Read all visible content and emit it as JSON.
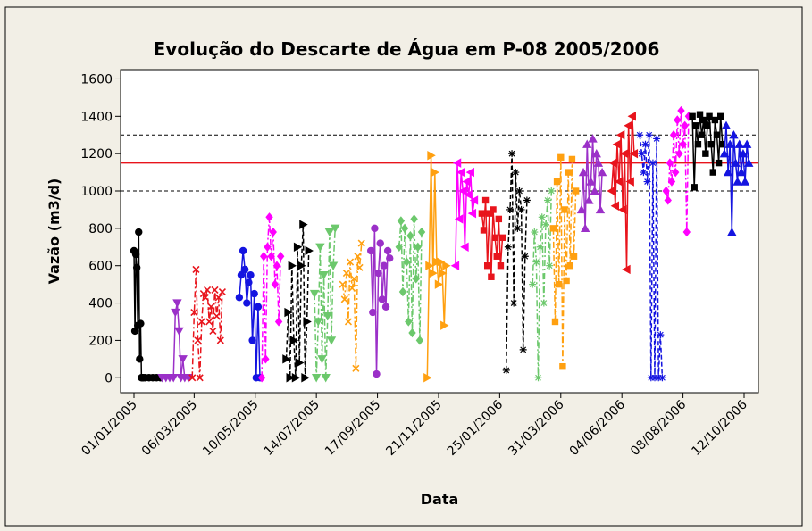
{
  "chart_data": {
    "type": "scatter",
    "title": "Evolução do Descarte de Água em P-08 2005/2006",
    "xlabel": "Data",
    "ylabel": "Vazão (m3/d)",
    "ylim": [
      -80,
      1650
    ],
    "yticks": [
      0,
      200,
      400,
      600,
      800,
      1000,
      1200,
      1400,
      1600
    ],
    "xlim": [
      0,
      685
    ],
    "xticks": [
      {
        "label": "01/01/2005",
        "day": 0
      },
      {
        "label": "06/03/2005",
        "day": 64
      },
      {
        "label": "10/05/2005",
        "day": 129
      },
      {
        "label": "14/07/2005",
        "day": 194
      },
      {
        "label": "17/09/2005",
        "day": 259
      },
      {
        "label": "21/11/2005",
        "day": 324
      },
      {
        "label": "25/01/2006",
        "day": 389
      },
      {
        "label": "31/03/2006",
        "day": 454
      },
      {
        "label": "04/06/2006",
        "day": 519
      },
      {
        "label": "08/08/2006",
        "day": 584
      },
      {
        "label": "12/10/2006",
        "day": 649
      }
    ],
    "reference_lines": [
      {
        "value": 1150,
        "color": "#e8141c",
        "style": "solid"
      },
      {
        "value": 1300,
        "color": "#000000",
        "style": "dashed"
      },
      {
        "value": 1000,
        "color": "#000000",
        "style": "dashed"
      }
    ],
    "grid": false,
    "legend": "none",
    "series": [
      {
        "color": "#000000",
        "marker": "circle",
        "line": "solid",
        "x": [
          0,
          1,
          2,
          3,
          4,
          5,
          6,
          7,
          8,
          9,
          10,
          12,
          16,
          20,
          24,
          28
        ],
        "values": [
          680,
          250,
          660,
          590,
          280,
          780,
          100,
          290,
          0,
          0,
          0,
          0,
          0,
          0,
          0,
          0
        ]
      },
      {
        "color": "#9b30c8",
        "marker": "tri-down",
        "line": "solid",
        "x": [
          30,
          34,
          38,
          42,
          44,
          46,
          48,
          50,
          52,
          54,
          58
        ],
        "values": [
          0,
          0,
          0,
          0,
          350,
          400,
          250,
          0,
          100,
          0,
          0
        ]
      },
      {
        "color": "#e8141c",
        "marker": "x",
        "line": "dashdot",
        "x": [
          62,
          64,
          66,
          68,
          70,
          72,
          74,
          76,
          78,
          80,
          82,
          84,
          86,
          88,
          90,
          92,
          94
        ],
        "values": [
          0,
          350,
          580,
          200,
          0,
          300,
          450,
          430,
          470,
          300,
          380,
          250,
          470,
          330,
          430,
          200,
          460
        ]
      },
      {
        "color": "#1414e0",
        "marker": "circle",
        "line": "solid",
        "x": [
          112,
          114,
          116,
          118,
          120,
          122,
          124,
          126,
          128,
          130,
          132,
          134
        ],
        "values": [
          430,
          550,
          680,
          580,
          400,
          510,
          550,
          200,
          450,
          0,
          380,
          0
        ]
      },
      {
        "color": "#ff00ff",
        "marker": "diamond",
        "line": "dashdot",
        "x": [
          136,
          138,
          140,
          142,
          144,
          146,
          148,
          150,
          152,
          154,
          156
        ],
        "values": [
          0,
          650,
          100,
          700,
          860,
          650,
          780,
          500,
          600,
          300,
          650
        ]
      },
      {
        "color": "#000000",
        "marker": "tri-right",
        "line": "dashed",
        "x": [
          162,
          164,
          166,
          168,
          170,
          172,
          174,
          176,
          178,
          180,
          182,
          184,
          186
        ],
        "values": [
          100,
          350,
          0,
          600,
          200,
          0,
          700,
          80,
          600,
          820,
          0,
          300,
          680
        ]
      },
      {
        "color": "#6cc86c",
        "marker": "tri-down",
        "line": "dashdot",
        "x": [
          192,
          194,
          196,
          198,
          200,
          202,
          204,
          206,
          208,
          210,
          212,
          214
        ],
        "values": [
          450,
          0,
          300,
          700,
          100,
          550,
          0,
          330,
          780,
          200,
          600,
          800
        ]
      },
      {
        "color": "#ffa010",
        "marker": "x",
        "line": "dashdot",
        "x": [
          222,
          224,
          226,
          228,
          230,
          232,
          234,
          236,
          238,
          240,
          242
        ],
        "values": [
          500,
          420,
          560,
          300,
          620,
          480,
          530,
          50,
          650,
          590,
          720
        ]
      },
      {
        "color": "#9b30c8",
        "marker": "circle",
        "line": "solid",
        "x": [
          252,
          254,
          256,
          258,
          260,
          262,
          264,
          266,
          268,
          270,
          272
        ],
        "values": [
          680,
          350,
          800,
          20,
          560,
          720,
          420,
          600,
          380,
          680,
          640
        ]
      },
      {
        "color": "#6cc86c",
        "marker": "diamond",
        "line": "dashdot",
        "x": [
          282,
          284,
          286,
          288,
          290,
          292,
          294,
          296,
          298,
          300,
          302,
          304,
          306
        ],
        "values": [
          700,
          840,
          460,
          800,
          620,
          300,
          760,
          240,
          850,
          530,
          700,
          200,
          780
        ]
      },
      {
        "color": "#ffa010",
        "marker": "tri-right",
        "line": "solid",
        "x": [
          312,
          314,
          316,
          318,
          320,
          322,
          324,
          326,
          328,
          330,
          332
        ],
        "values": [
          0,
          600,
          1190,
          560,
          1100,
          620,
          500,
          620,
          560,
          280,
          600
        ]
      },
      {
        "color": "#ff00ff",
        "marker": "tri-left",
        "line": "solid",
        "x": [
          342,
          344,
          346,
          348,
          350,
          352,
          354,
          356,
          358,
          360,
          362
        ],
        "values": [
          600,
          1150,
          850,
          1100,
          1000,
          700,
          1050,
          980,
          1100,
          880,
          950
        ]
      },
      {
        "color": "#e8141c",
        "marker": "square",
        "line": "solid",
        "x": [
          370,
          372,
          374,
          376,
          378,
          380,
          382,
          384,
          386,
          388,
          390,
          392
        ],
        "values": [
          880,
          790,
          950,
          600,
          880,
          540,
          900,
          750,
          650,
          850,
          600,
          750
        ]
      },
      {
        "color": "#000000",
        "marker": "star",
        "line": "dashed",
        "x": [
          396,
          398,
          400,
          402,
          404,
          406,
          408,
          410,
          412,
          414,
          416,
          418
        ],
        "values": [
          40,
          700,
          900,
          1200,
          400,
          1100,
          800,
          1000,
          900,
          150,
          650,
          950
        ]
      },
      {
        "color": "#6cc86c",
        "marker": "star",
        "line": "dashdot",
        "x": [
          424,
          426,
          428,
          430,
          432,
          434,
          436,
          438,
          440,
          442,
          444
        ],
        "values": [
          500,
          780,
          620,
          0,
          700,
          860,
          400,
          820,
          950,
          600,
          1000
        ]
      },
      {
        "color": "#ffa010",
        "marker": "square",
        "line": "dashdot",
        "x": [
          446,
          448,
          450,
          452,
          454,
          456,
          458,
          460,
          462,
          464,
          466,
          468,
          470
        ],
        "values": [
          800,
          300,
          1050,
          500,
          1180,
          60,
          900,
          520,
          1100,
          600,
          1170,
          650,
          1000
        ]
      },
      {
        "color": "#9b30c8",
        "marker": "tri-up",
        "line": "solid",
        "x": [
          476,
          478,
          480,
          482,
          484,
          486,
          488,
          490,
          492,
          494,
          496,
          498
        ],
        "values": [
          900,
          1100,
          800,
          1250,
          950,
          1050,
          1280,
          1000,
          1200,
          1150,
          900,
          1100
        ]
      },
      {
        "color": "#e8141c",
        "marker": "tri-left",
        "line": "solid",
        "x": [
          508,
          510,
          512,
          514,
          516,
          518,
          520,
          522,
          524,
          526,
          528,
          530,
          532
        ],
        "values": [
          1000,
          1150,
          920,
          1250,
          1050,
          1300,
          900,
          1200,
          580,
          1350,
          1050,
          1400,
          1200
        ]
      },
      {
        "color": "#1414e0",
        "marker": "star",
        "line": "dashed",
        "x": [
          538,
          540,
          542,
          544,
          546,
          548,
          550,
          552,
          554,
          556,
          558,
          560,
          562
        ],
        "values": [
          1300,
          1200,
          1100,
          1250,
          1050,
          1300,
          0,
          1150,
          0,
          1280,
          0,
          230,
          0
        ]
      },
      {
        "color": "#ff00ff",
        "marker": "diamond",
        "line": "dashdot",
        "x": [
          566,
          568,
          570,
          572,
          574,
          576,
          578,
          580,
          582,
          584,
          586,
          588,
          590
        ],
        "values": [
          1000,
          950,
          1150,
          1050,
          1300,
          1100,
          1380,
          1200,
          1430,
          1250,
          1350,
          780,
          1400
        ]
      },
      {
        "color": "#000000",
        "marker": "square",
        "line": "solid",
        "x": [
          594,
          596,
          598,
          600,
          602,
          604,
          606,
          608,
          610,
          612,
          614,
          616,
          618,
          620,
          622,
          624,
          626
        ],
        "values": [
          1400,
          1020,
          1350,
          1250,
          1410,
          1300,
          1380,
          1200,
          1350,
          1400,
          1250,
          1100,
          1380,
          1300,
          1150,
          1400,
          1250
        ]
      },
      {
        "color": "#1414e0",
        "marker": "tri-up",
        "line": "solid",
        "x": [
          628,
          630,
          632,
          634,
          636,
          638,
          640,
          642,
          644,
          646,
          648,
          650,
          652,
          654
        ],
        "values": [
          1200,
          1350,
          1100,
          1250,
          780,
          1300,
          1150,
          1050,
          1250,
          1100,
          1200,
          1050,
          1250,
          1150
        ]
      }
    ]
  }
}
